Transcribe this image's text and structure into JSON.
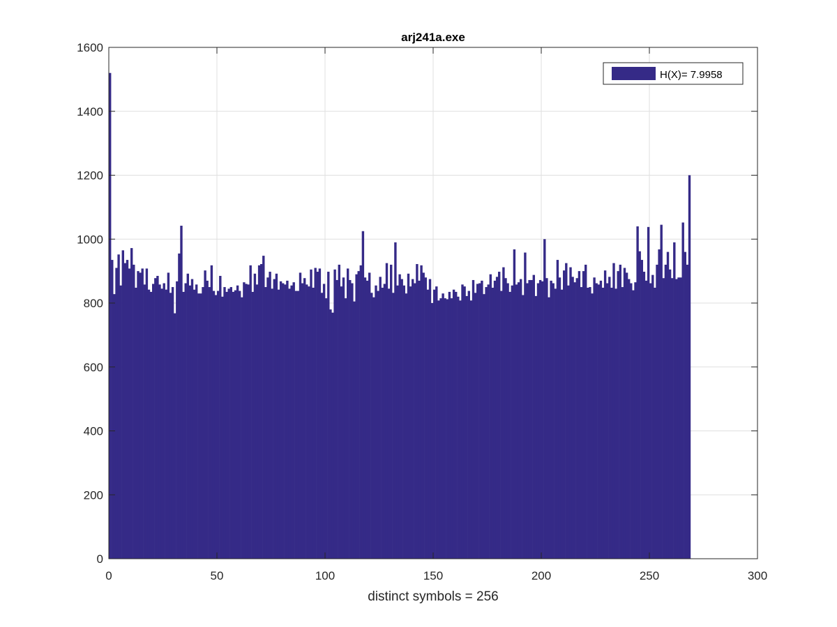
{
  "chart_data": {
    "type": "bar",
    "title": "arj241a.exe",
    "xlabel": "distinct symbols = 256",
    "ylabel": "",
    "xlim": [
      0,
      300
    ],
    "ylim": [
      0,
      1600
    ],
    "xticks": [
      0,
      50,
      100,
      150,
      200,
      250,
      300
    ],
    "yticks": [
      0,
      200,
      400,
      600,
      800,
      1000,
      1200,
      1400,
      1600
    ],
    "xtick_labels": [
      "0",
      "50",
      "100",
      "150",
      "200",
      "250",
      "300"
    ],
    "ytick_labels": [
      "0",
      "200",
      "400",
      "600",
      "800",
      "1000",
      "1200",
      "1400",
      "1600"
    ],
    "grid": true,
    "legend": {
      "position": "top-right",
      "entries": [
        "H(X)= 7.9958"
      ]
    },
    "colors": {
      "bar": "#352A87",
      "axis": "#262626",
      "grid": "#DFDFDF"
    },
    "series": [
      {
        "name": "H(X)= 7.9958",
        "x_start": 0,
        "values": [
          1520,
          935,
          828,
          910,
          952,
          855,
          965,
          925,
          935,
          908,
          972,
          920,
          848,
          900,
          895,
          908,
          858,
          908,
          842,
          835,
          860,
          878,
          885,
          858,
          845,
          862,
          842,
          895,
          832,
          850,
          768,
          868,
          955,
          1042,
          835,
          862,
          892,
          855,
          875,
          842,
          858,
          830,
          830,
          850,
          902,
          870,
          850,
          918,
          838,
          825,
          838,
          885,
          820,
          850,
          835,
          845,
          850,
          835,
          840,
          855,
          838,
          818,
          865,
          860,
          858,
          918,
          835,
          892,
          858,
          918,
          922,
          948,
          850,
          880,
          898,
          845,
          875,
          892,
          842,
          868,
          862,
          858,
          870,
          845,
          855,
          865,
          838,
          838,
          895,
          862,
          878,
          858,
          852,
          905,
          848,
          910,
          898,
          908,
          832,
          860,
          815,
          898,
          780,
          770,
          905,
          872,
          920,
          852,
          880,
          815,
          908,
          872,
          862,
          805,
          890,
          900,
          918,
          1025,
          880,
          870,
          895,
          832,
          818,
          855,
          838,
          882,
          848,
          860,
          925,
          845,
          920,
          832,
          990,
          855,
          890,
          875,
          855,
          830,
          892,
          852,
          875,
          862,
          922,
          870,
          918,
          895,
          880,
          842,
          875,
          800,
          842,
          852,
          808,
          815,
          830,
          815,
          812,
          835,
          815,
          842,
          835,
          820,
          808,
          858,
          852,
          822,
          838,
          808,
          872,
          832,
          860,
          862,
          870,
          828,
          850,
          858,
          890,
          848,
          870,
          882,
          898,
          838,
          912,
          878,
          862,
          835,
          855,
          968,
          858,
          865,
          875,
          825,
          958,
          862,
          872,
          872,
          888,
          822,
          862,
          872,
          868,
          1000,
          878,
          818,
          870,
          862,
          845,
          935,
          880,
          842,
          902,
          925,
          855,
          912,
          882,
          865,
          878,
          900,
          850,
          900,
          920,
          848,
          850,
          830,
          880,
          862,
          858,
          870,
          848,
          902,
          862,
          882,
          848,
          925,
          845,
          900,
          920,
          850,
          910,
          895,
          875,
          862,
          840,
          865,
          1040,
          962,
          935,
          898,
          870,
          1038,
          862,
          888,
          848,
          920,
          968,
          1045,
          878,
          920,
          960,
          905,
          878,
          990,
          875,
          880,
          880,
          1052,
          960,
          920,
          1200
        ]
      }
    ]
  }
}
